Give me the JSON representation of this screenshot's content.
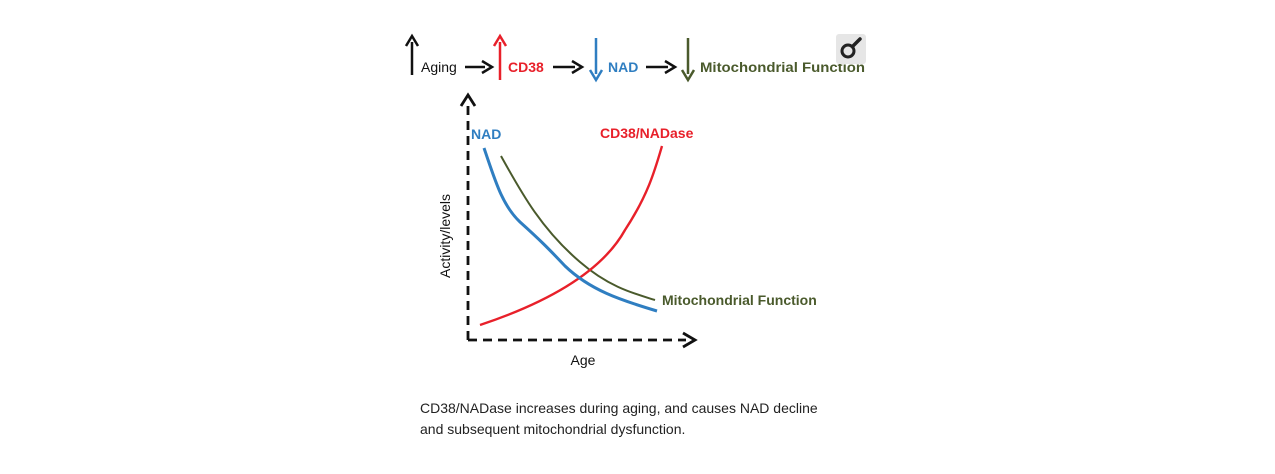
{
  "colors": {
    "aging": "#111111",
    "cd38": "#e8202a",
    "nad": "#2f7ec1",
    "mito": "#4a5a2c",
    "axis": "#111111",
    "icon_bg": "#e6e6e6"
  },
  "flow": {
    "steps": [
      {
        "label": "Aging",
        "direction": "up",
        "color_key": "aging"
      },
      {
        "label": "CD38",
        "direction": "up",
        "color_key": "cd38"
      },
      {
        "label": "NAD",
        "direction": "down",
        "color_key": "nad"
      },
      {
        "label": "Mitochondrial Function",
        "direction": "down",
        "color_key": "mito"
      }
    ],
    "icon": "magnifier-icon"
  },
  "chart_data": {
    "type": "line",
    "xlabel": "Age",
    "ylabel": "Activity/levels",
    "axes_style": "dashed-with-arrows",
    "ticks": false,
    "grid": false,
    "series": [
      {
        "name": "NAD",
        "color": "#2f7ec1",
        "trend": "decreasing"
      },
      {
        "name": "CD38/NADase",
        "color": "#e8202a",
        "trend": "increasing"
      },
      {
        "name": "Mitochondrial Function",
        "color": "#4a5a2c",
        "trend": "decreasing"
      }
    ]
  },
  "caption": {
    "line1": "CD38/NADase increases during aging, and causes NAD decline",
    "line2": "and subsequent mitochondrial dysfunction."
  }
}
